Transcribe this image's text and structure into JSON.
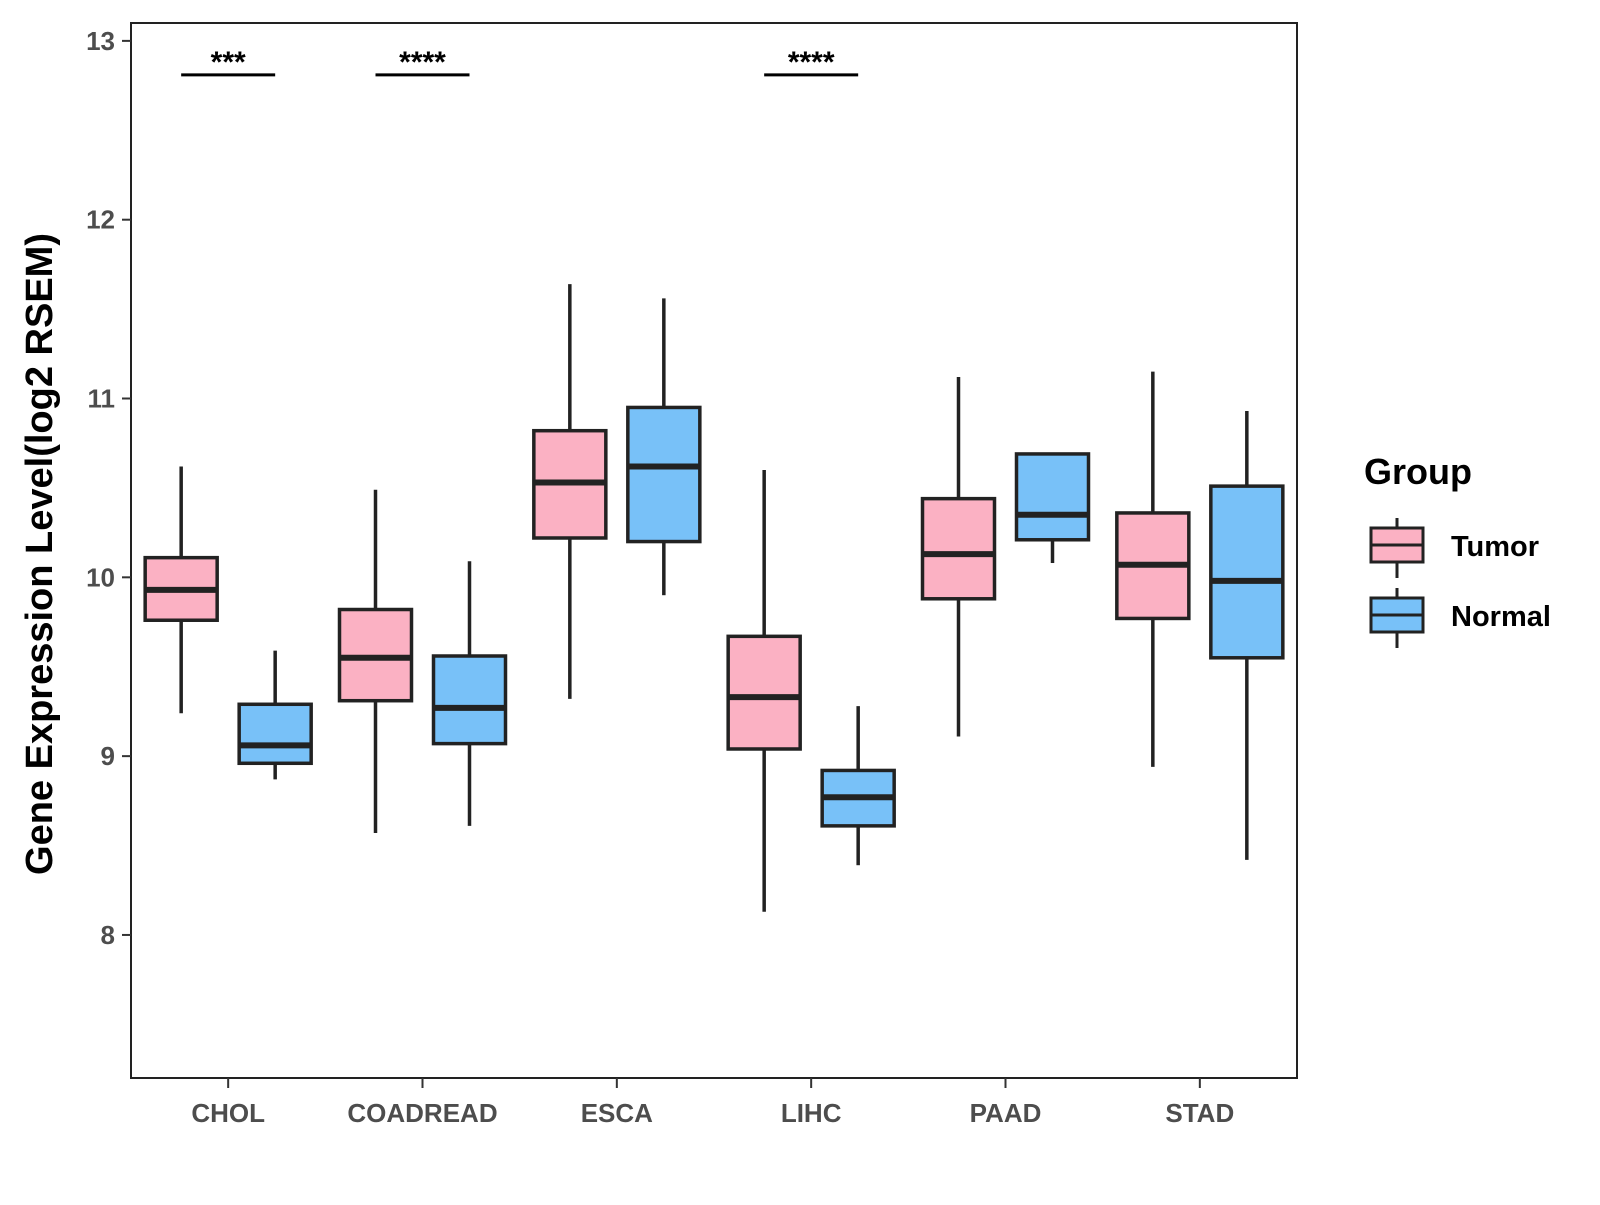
{
  "chart_data": {
    "type": "boxplot",
    "title": "",
    "xlabel": "",
    "ylabel": "Gene Expression Level(log2 RSEM)",
    "ylim": [
      7.2,
      13.1
    ],
    "yticks": [
      8,
      9,
      10,
      11,
      12,
      13
    ],
    "categories": [
      "CHOL",
      "COADREAD",
      "ESCA",
      "LIHC",
      "PAAD",
      "STAD"
    ],
    "legend": {
      "title": "Group",
      "position": "right",
      "entries": [
        {
          "name": "Tumor",
          "color": "#fbb1c3"
        },
        {
          "name": "Normal",
          "color": "#78c1f8"
        }
      ]
    },
    "series": [
      {
        "name": "Tumor",
        "color": "#fbb1c3",
        "boxes": [
          {
            "category": "CHOL",
            "whisker_low": 9.24,
            "q1": 9.76,
            "median": 9.93,
            "q3": 10.11,
            "whisker_high": 10.62
          },
          {
            "category": "COADREAD",
            "whisker_low": 8.57,
            "q1": 9.31,
            "median": 9.55,
            "q3": 9.82,
            "whisker_high": 10.49
          },
          {
            "category": "ESCA",
            "whisker_low": 9.32,
            "q1": 10.22,
            "median": 10.53,
            "q3": 10.82,
            "whisker_high": 11.64
          },
          {
            "category": "LIHC",
            "whisker_low": 8.13,
            "q1": 9.04,
            "median": 9.33,
            "q3": 9.67,
            "whisker_high": 10.6
          },
          {
            "category": "PAAD",
            "whisker_low": 9.11,
            "q1": 9.88,
            "median": 10.13,
            "q3": 10.44,
            "whisker_high": 11.12
          },
          {
            "category": "STAD",
            "whisker_low": 8.94,
            "q1": 9.77,
            "median": 10.07,
            "q3": 10.36,
            "whisker_high": 11.15
          }
        ]
      },
      {
        "name": "Normal",
        "color": "#78c1f8",
        "boxes": [
          {
            "category": "CHOL",
            "whisker_low": 8.87,
            "q1": 8.96,
            "median": 9.06,
            "q3": 9.29,
            "whisker_high": 9.59
          },
          {
            "category": "COADREAD",
            "whisker_low": 8.61,
            "q1": 9.07,
            "median": 9.27,
            "q3": 9.56,
            "whisker_high": 10.09
          },
          {
            "category": "ESCA",
            "whisker_low": 9.9,
            "q1": 10.2,
            "median": 10.62,
            "q3": 10.95,
            "whisker_high": 11.56
          },
          {
            "category": "LIHC",
            "whisker_low": 8.39,
            "q1": 8.61,
            "median": 8.77,
            "q3": 8.92,
            "whisker_high": 9.28
          },
          {
            "category": "PAAD",
            "whisker_low": 10.08,
            "q1": 10.21,
            "median": 10.35,
            "q3": 10.69,
            "whisker_high": 10.69
          },
          {
            "category": "STAD",
            "whisker_low": 8.42,
            "q1": 9.55,
            "median": 9.98,
            "q3": 10.51,
            "whisker_high": 10.93
          }
        ]
      }
    ],
    "annotations": [
      {
        "category": "CHOL",
        "label": "***",
        "y": 12.81
      },
      {
        "category": "COADREAD",
        "label": "****",
        "y": 12.81
      },
      {
        "category": "LIHC",
        "label": "****",
        "y": 12.81
      }
    ]
  }
}
